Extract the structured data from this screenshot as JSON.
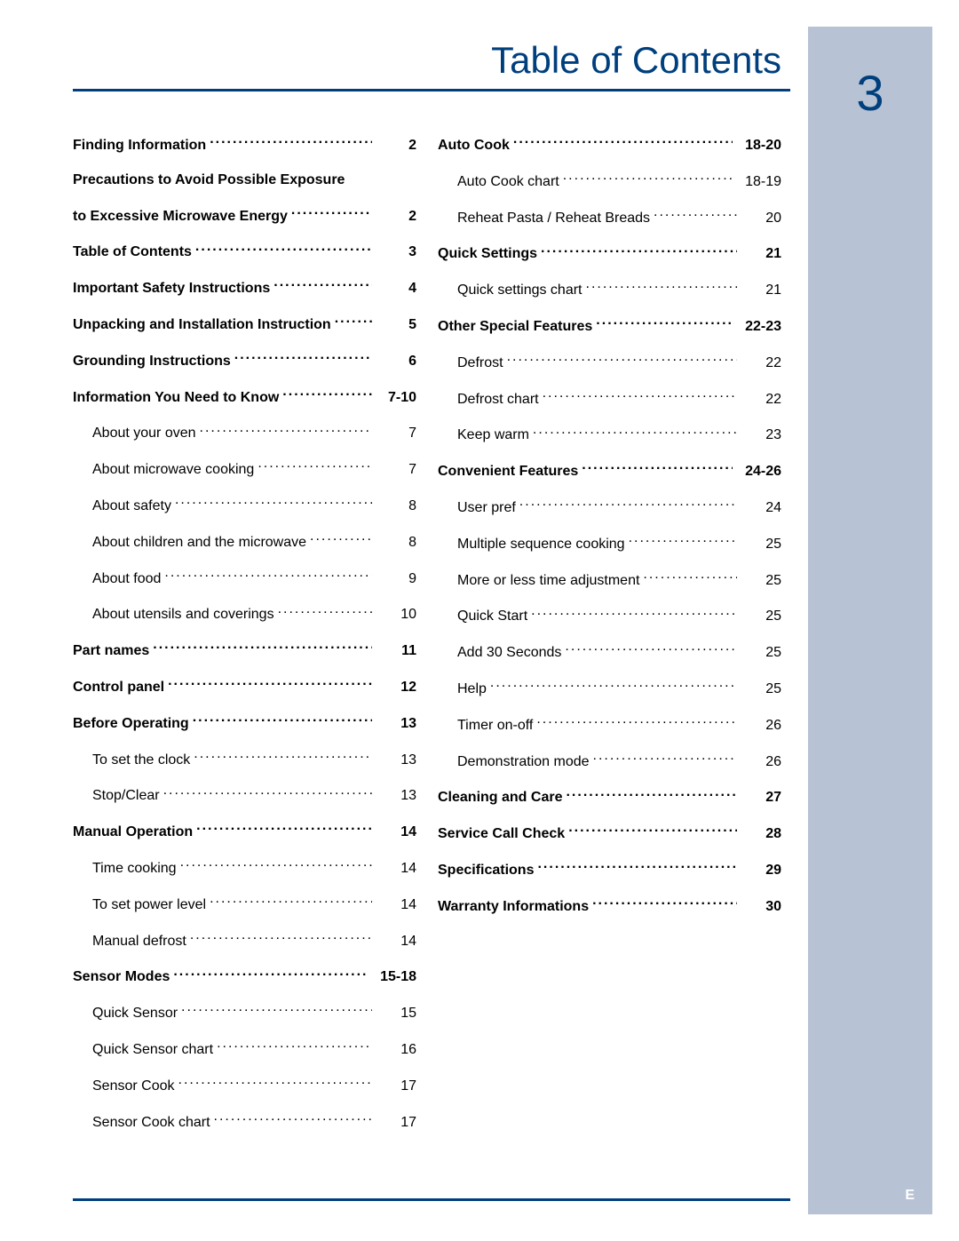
{
  "meta": {
    "title": "Table of Contents",
    "page_number": "3",
    "footer_letter": "E",
    "colors": {
      "accent": "#003f7d",
      "sidebar_bg": "#b7c2d4",
      "text": "#000000",
      "page_bg": "#ffffff",
      "footer_text": "#ffffff"
    },
    "typography": {
      "title_fontsize": 42,
      "pagenum_fontsize": 56,
      "body_fontsize": 16,
      "line_spacing": 18
    }
  },
  "columns": [
    [
      {
        "label": "Finding Information",
        "page": "2",
        "bold": true
      },
      {
        "label": "Precautions to Avoid Possible Exposure",
        "page": "",
        "bold": true,
        "nodots": true
      },
      {
        "label": "to Excessive Microwave Energy ",
        "page": "2",
        "bold": true,
        "cont": true
      },
      {
        "label": "Table of Contents ",
        "page": "3",
        "bold": true
      },
      {
        "label": "Important Safety Instructions",
        "page": "4",
        "bold": true
      },
      {
        "label": "Unpacking and Installation Instruction ",
        "page": "5",
        "bold": true
      },
      {
        "label": "Grounding Instructions",
        "page": "6",
        "bold": true
      },
      {
        "label": "Information You Need to Know ",
        "page": "7-10",
        "bold": true
      },
      {
        "label": "About your oven ",
        "page": "7",
        "sub": true
      },
      {
        "label": "About microwave cooking ",
        "page": "7",
        "sub": true
      },
      {
        "label": "About safety ",
        "page": "8",
        "sub": true
      },
      {
        "label": "About children and the microwave ",
        "page": "8",
        "sub": true
      },
      {
        "label": "About food ",
        "page": "9",
        "sub": true
      },
      {
        "label": "About utensils and coverings ",
        "page": "10",
        "sub": true
      },
      {
        "label": "Part names ",
        "page": "11",
        "bold": true
      },
      {
        "label": "Control panel ",
        "page": "12",
        "bold": true
      },
      {
        "label": "Before Operating ",
        "page": "13",
        "bold": true
      },
      {
        "label": "To set the clock",
        "page": "13",
        "sub": true
      },
      {
        "label": "Stop/Clear ",
        "page": "13",
        "sub": true
      },
      {
        "label": "Manual Operation ",
        "page": "14",
        "bold": true
      },
      {
        "label": "Time cooking ",
        "page": "14",
        "sub": true
      },
      {
        "label": "To set power level",
        "page": "14",
        "sub": true
      },
      {
        "label": "Manual defrost",
        "page": "14",
        "sub": true
      },
      {
        "label": "Sensor Modes ",
        "page": "15-18",
        "bold": true
      },
      {
        "label": "Quick Sensor",
        "page": "15",
        "sub": true
      },
      {
        "label": "Quick Sensor chart",
        "page": "16",
        "sub": true
      },
      {
        "label": "Sensor Cook",
        "page": "17",
        "sub": true
      },
      {
        "label": "Sensor Cook chart",
        "page": "17",
        "sub": true
      }
    ],
    [
      {
        "label": "Auto Cook ",
        "page": "18-20",
        "bold": true
      },
      {
        "label": "Auto Cook chart",
        "page": "18-19",
        "sub": true
      },
      {
        "label": "Reheat Pasta / Reheat Breads",
        "page": "20",
        "sub": true
      },
      {
        "label": "Quick Settings ",
        "page": "21",
        "bold": true
      },
      {
        "label": "Quick settings chart ",
        "page": "21",
        "sub": true
      },
      {
        "label": "Other Special Features ",
        "page": "22-23",
        "bold": true
      },
      {
        "label": "Defrost ",
        "page": "22",
        "sub": true
      },
      {
        "label": "Defrost chart",
        "page": "22",
        "sub": true
      },
      {
        "label": "Keep warm ",
        "page": "23",
        "sub": true
      },
      {
        "label": "Convenient Features ",
        "page": "24-26",
        "bold": true
      },
      {
        "label": "User pref",
        "page": "24",
        "sub": true
      },
      {
        "label": "Multiple sequence cooking",
        "page": "25",
        "sub": true
      },
      {
        "label": "More or less time adjustment ",
        "page": "25",
        "sub": true
      },
      {
        "label": "Quick Start",
        "page": "25",
        "sub": true
      },
      {
        "label": "Add 30 Seconds",
        "page": "25",
        "sub": true
      },
      {
        "label": "Help",
        "page": "25",
        "sub": true
      },
      {
        "label": "Timer on-off ",
        "page": "26",
        "sub": true
      },
      {
        "label": "Demonstration mode",
        "page": "26",
        "sub": true
      },
      {
        "label": "Cleaning and Care",
        "page": "27",
        "bold": true
      },
      {
        "label": "Service Call Check ",
        "page": "28",
        "bold": true
      },
      {
        "label": "Specifications ",
        "page": "29",
        "bold": true
      },
      {
        "label": "Warranty Informations ",
        "page": "30",
        "bold": true
      }
    ]
  ]
}
